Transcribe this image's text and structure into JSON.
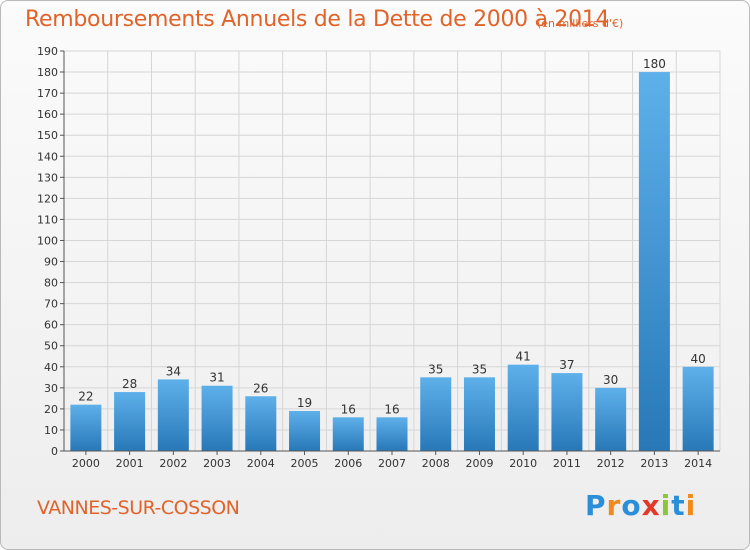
{
  "title": "Remboursements Annuels de la Dette de 2000 à 2014",
  "subtitle": "(en milliers d'€)",
  "commune": "VANNES-SUR-COSSON",
  "logo": {
    "text": "Proxiti",
    "letters": [
      "P",
      "r",
      "o",
      "x",
      "i",
      "t",
      "i"
    ]
  },
  "colors": {
    "accent": "#e0632a",
    "bar_light": "#5eb0ea",
    "bar_dark": "#2878b8"
  },
  "chart_data": {
    "type": "bar",
    "categories": [
      "2000",
      "2001",
      "2002",
      "2003",
      "2004",
      "2005",
      "2006",
      "2007",
      "2008",
      "2009",
      "2010",
      "2011",
      "2012",
      "2013",
      "2014"
    ],
    "values": [
      22,
      28,
      34,
      31,
      26,
      19,
      16,
      16,
      35,
      35,
      41,
      37,
      30,
      180,
      40
    ],
    "ylim": [
      0,
      190
    ],
    "yticks": [
      0,
      10,
      20,
      30,
      40,
      50,
      60,
      70,
      80,
      90,
      100,
      110,
      120,
      130,
      140,
      150,
      160,
      170,
      180,
      190
    ],
    "grid": true,
    "legend": "none"
  }
}
